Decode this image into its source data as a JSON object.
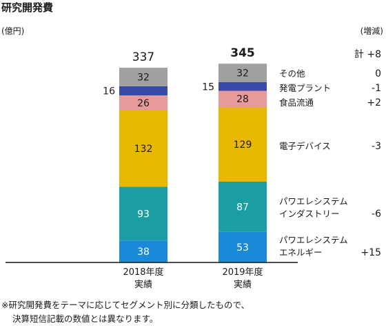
{
  "title": "研究開発費",
  "unit_left": "(億円)",
  "unit_right": "(増減)",
  "footnote": {
    "line1": "※研究開発費をテーマに応じてセグメント別に分類したもので、",
    "line2": "決算短信記載の数値とは異なります。"
  },
  "change_total_label": "計 +8",
  "colors": {
    "energy": "#1a8ad8",
    "industry": "#1a9ea3",
    "electronic": "#e8b800",
    "food": "#e89a9a",
    "plant": "#3a48a8",
    "other": "#a0a0a0",
    "axis": "#111111"
  },
  "chart_data": {
    "type": "bar",
    "stacked": true,
    "categories": [
      {
        "line1": "2018年度",
        "line2": "実績"
      },
      {
        "line1": "2019年度",
        "line2": "実績"
      }
    ],
    "totals": [
      337,
      345
    ],
    "series": [
      {
        "key": "energy",
        "name_lines": [
          "パワエレシステム",
          "エネルギー"
        ],
        "values": [
          38,
          53
        ],
        "change": "+15"
      },
      {
        "key": "industry",
        "name_lines": [
          "パワエレシステム",
          "インダストリー"
        ],
        "values": [
          93,
          87
        ],
        "change": "-6"
      },
      {
        "key": "electronic",
        "name_lines": [
          "電子デバイス"
        ],
        "values": [
          132,
          129
        ],
        "change": "-3"
      },
      {
        "key": "food",
        "name_lines": [
          "食品流通"
        ],
        "values": [
          26,
          28
        ],
        "change": "+2"
      },
      {
        "key": "plant",
        "name_lines": [
          "発電プラント"
        ],
        "values": [
          16,
          15
        ],
        "change": "-1"
      },
      {
        "key": "other",
        "name_lines": [
          "その他"
        ],
        "values": [
          32,
          32
        ],
        "change": "0"
      }
    ],
    "ylabel": "(億円)"
  }
}
